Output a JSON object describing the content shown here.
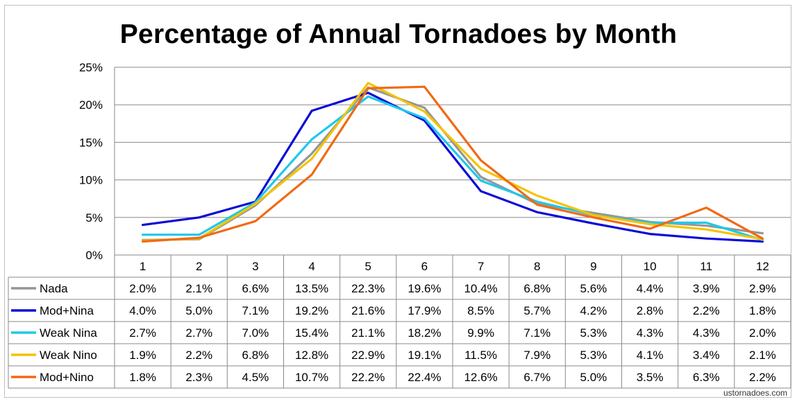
{
  "chart_data": {
    "type": "line",
    "title": "Percentage of Annual Tornadoes by Month",
    "categories": [
      "1",
      "2",
      "3",
      "4",
      "5",
      "6",
      "7",
      "8",
      "9",
      "10",
      "11",
      "12"
    ],
    "yticks": [
      "25%",
      "20%",
      "15%",
      "10%",
      "5%",
      "0%"
    ],
    "ylim": [
      0,
      25
    ],
    "grid": true,
    "legend": "data-table-left",
    "series": [
      {
        "name": "Nada",
        "color": "#969696",
        "values": [
          2.0,
          2.1,
          6.6,
          13.5,
          22.3,
          19.6,
          10.4,
          6.8,
          5.6,
          4.4,
          3.9,
          2.9
        ],
        "labels": [
          "2.0%",
          "2.1%",
          "6.6%",
          "13.5%",
          "22.3%",
          "19.6%",
          "10.4%",
          "6.8%",
          "5.6%",
          "4.4%",
          "3.9%",
          "2.9%"
        ]
      },
      {
        "name": "Mod+Nina",
        "color": "#0a0ad8",
        "values": [
          4.0,
          5.0,
          7.1,
          19.2,
          21.6,
          17.9,
          8.5,
          5.7,
          4.2,
          2.8,
          2.2,
          1.8
        ],
        "labels": [
          "4.0%",
          "5.0%",
          "7.1%",
          "19.2%",
          "21.6%",
          "17.9%",
          "8.5%",
          "5.7%",
          "4.2%",
          "2.8%",
          "2.2%",
          "1.8%"
        ]
      },
      {
        "name": "Weak Nina",
        "color": "#1ec8ea",
        "values": [
          2.7,
          2.7,
          7.0,
          15.4,
          21.1,
          18.2,
          9.9,
          7.1,
          5.3,
          4.3,
          4.3,
          2.0
        ],
        "labels": [
          "2.7%",
          "2.7%",
          "7.0%",
          "15.4%",
          "21.1%",
          "18.2%",
          "9.9%",
          "7.1%",
          "5.3%",
          "4.3%",
          "4.3%",
          "2.0%"
        ]
      },
      {
        "name": "Weak Nino",
        "color": "#f2c400",
        "values": [
          1.9,
          2.2,
          6.8,
          12.8,
          22.9,
          19.1,
          11.5,
          7.9,
          5.3,
          4.1,
          3.4,
          2.1
        ],
        "labels": [
          "1.9%",
          "2.2%",
          "6.8%",
          "12.8%",
          "22.9%",
          "19.1%",
          "11.5%",
          "7.9%",
          "5.3%",
          "4.1%",
          "3.4%",
          "2.1%"
        ]
      },
      {
        "name": "Mod+Nino",
        "color": "#f06a14",
        "values": [
          1.8,
          2.3,
          4.5,
          10.7,
          22.2,
          22.4,
          12.6,
          6.7,
          5.0,
          3.5,
          6.3,
          2.2
        ],
        "labels": [
          "1.8%",
          "2.3%",
          "4.5%",
          "10.7%",
          "22.2%",
          "22.4%",
          "12.6%",
          "6.7%",
          "5.0%",
          "3.5%",
          "6.3%",
          "2.2%"
        ]
      }
    ]
  },
  "watermark": "ustornadoes.com"
}
